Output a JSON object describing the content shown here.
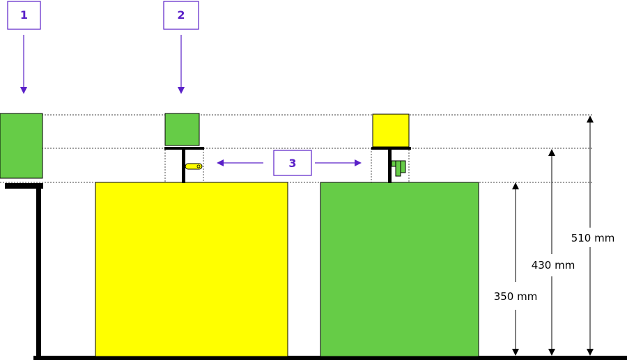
{
  "colors": {
    "green": "#66cc47",
    "yellow": "#ffff00",
    "accent": "#5a20c8",
    "ink": "#000000"
  },
  "callouts": {
    "c1": "1",
    "c2": "2",
    "c3": "3"
  },
  "dimensions": {
    "d350": "350 mm",
    "d430": "430 mm",
    "d510": "510 mm"
  },
  "icons": {
    "tag_yellow": "yellow-tag-icon",
    "tag_green": "green-tag-icon"
  }
}
